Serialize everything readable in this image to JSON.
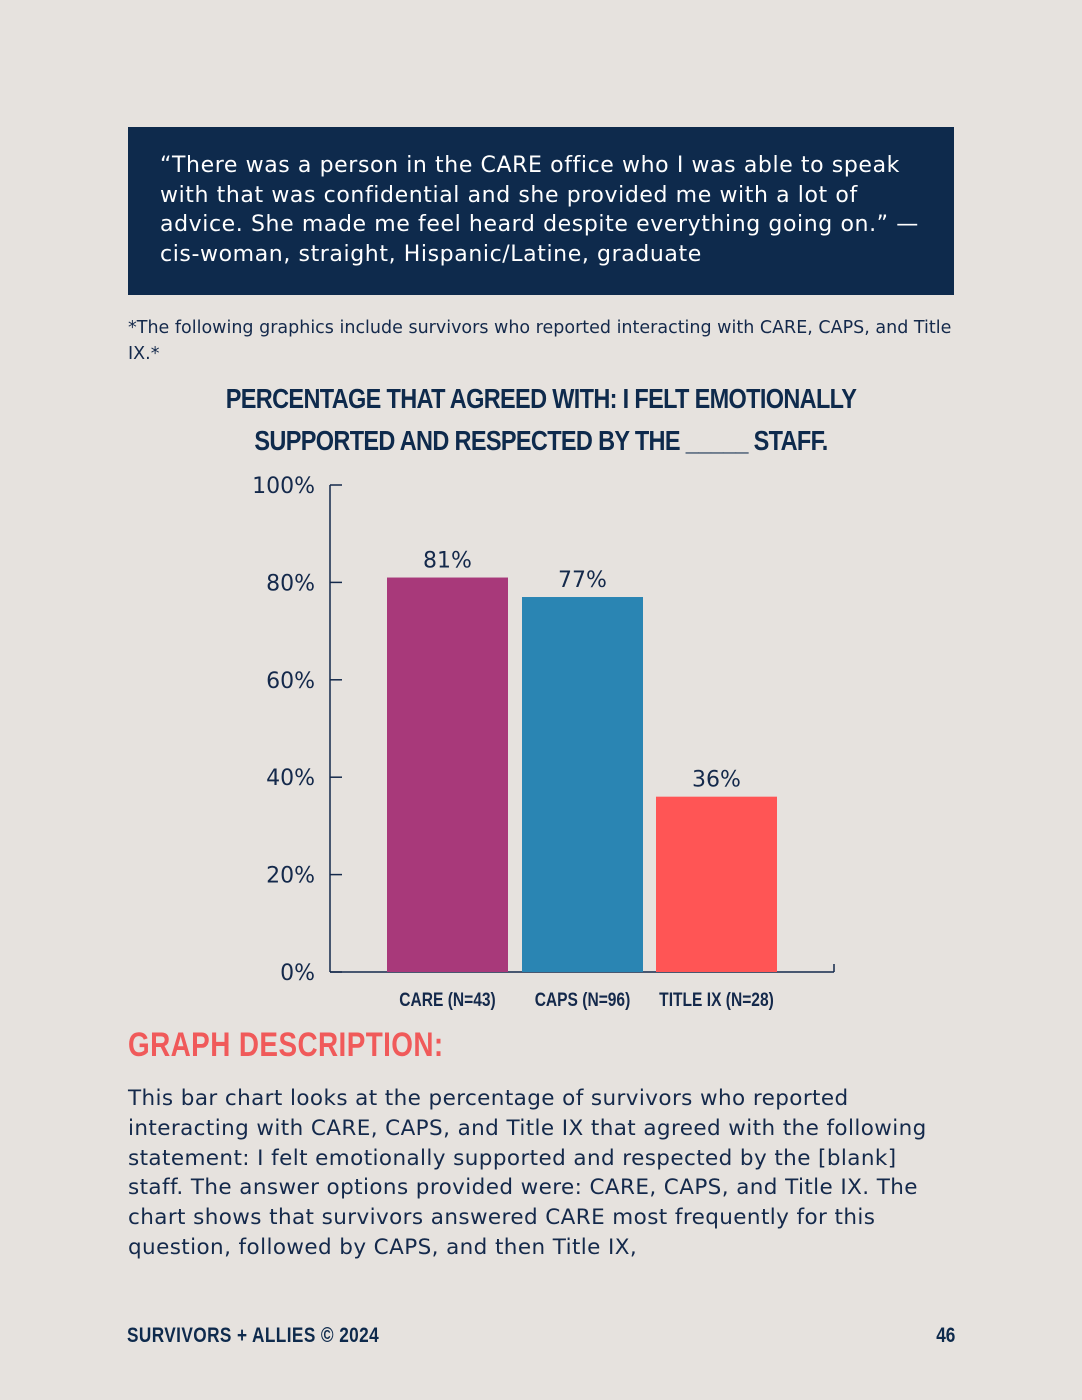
{
  "quote": {
    "text": "“There was a person in the CARE office who I was able to speak with that was confidential and she provided me with a lot of advice. She made me feel heard despite everything going on.” — cis-woman, straight, Hispanic/Latine, graduate"
  },
  "footnote": "*The following graphics include survivors who reported interacting with CARE, CAPS, and Title IX.*",
  "chart_data": {
    "type": "bar",
    "title": "Percentage that agreed with: I felt emotionally supported and respected by the _____ staff.",
    "categories": [
      "CARE (N=43)",
      "CAPS (N=96)",
      "TITLE IX (N=28)"
    ],
    "values": [
      81,
      77,
      36
    ],
    "data_labels": [
      "81%",
      "77%",
      "36%"
    ],
    "colors": [
      "#a8397a",
      "#2a85b3",
      "#ff5555"
    ],
    "yticks": [
      "0%",
      "20%",
      "40%",
      "60%",
      "80%",
      "100%"
    ],
    "ylim": [
      0,
      100
    ],
    "xlabel": "",
    "ylabel": "",
    "grid": false,
    "legend": "none"
  },
  "description": {
    "heading": "GRAPH DESCRIPTION:",
    "body": "This bar chart looks at the percentage of survivors who reported interacting with CARE, CAPS, and Title IX that agreed with the following statement: I felt emotionally supported and respected by the [blank] staff. The answer options provided were: CARE, CAPS, and Title IX. The chart shows that survivors answered CARE most frequently for this question, followed by CAPS, and then Title IX,"
  },
  "footer": {
    "left": "SURVIVORS + ALLIES © 2024",
    "page_number": "46"
  },
  "colors": {
    "background": "#e6e2de",
    "navy": "#0e2a4c",
    "accent": "#f05a5a"
  }
}
